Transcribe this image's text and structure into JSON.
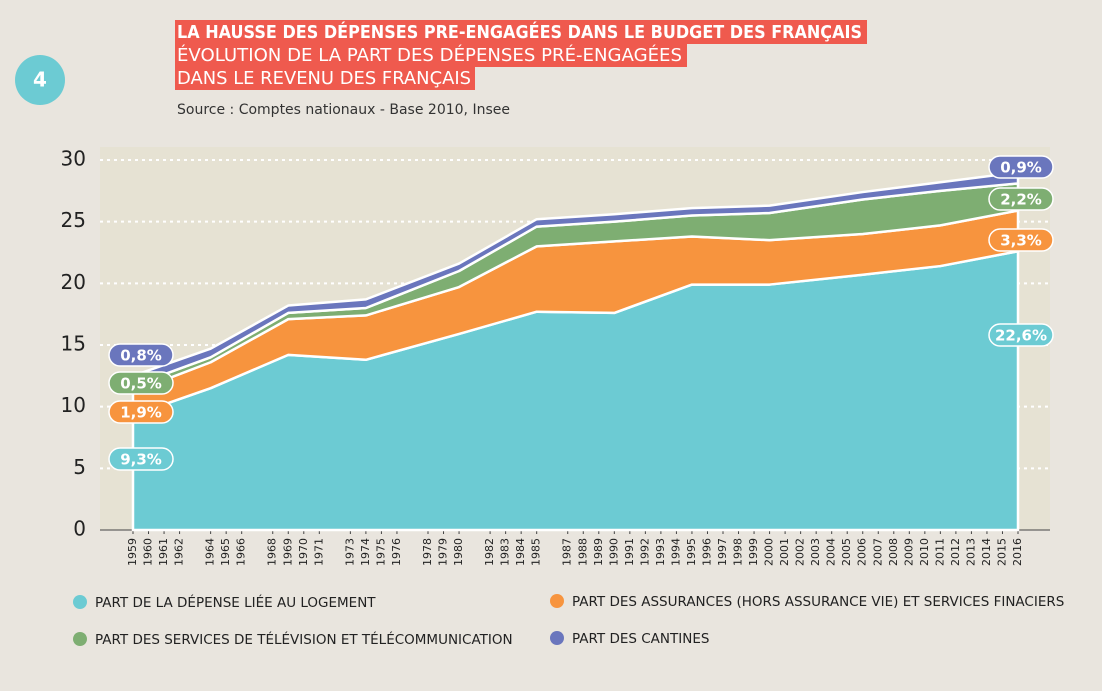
{
  "chart_data": {
    "type": "stacked_area",
    "badge": "4",
    "title": "LA HAUSSE DES DÉPENSES PRE-ENGAGÉES DANS LE BUDGET DES FRANÇAIS",
    "subtitle_lines": [
      "ÉVOLUTION DE LA PART DES DÉPENSES PRÉ-ENGAGÉES",
      "DANS LE REVENU DES FRANÇAIS"
    ],
    "source": "Source : Comptes nationaux - Base 2010, Insee",
    "x": [
      1959,
      1964,
      1969,
      1974,
      1980,
      1985,
      1990,
      1995,
      2000,
      2006,
      2011,
      2016
    ],
    "xlim": [
      1959,
      2016
    ],
    "xticks": [
      1959,
      1960,
      1961,
      1962,
      1964,
      1965,
      1966,
      1968,
      1969,
      1970,
      1971,
      1973,
      1974,
      1975,
      1976,
      1978,
      1979,
      1980,
      1982,
      1983,
      1984,
      1985,
      1987,
      1988,
      1989,
      1990,
      1991,
      1992,
      1993,
      1994,
      1995,
      1996,
      1997,
      1998,
      1999,
      2000,
      2001,
      2002,
      2003,
      2004,
      2005,
      2006,
      2007,
      2008,
      2009,
      2010,
      2011,
      2012,
      2013,
      2014,
      2015,
      2016
    ],
    "ylim": [
      0,
      30
    ],
    "yticks": [
      0,
      5,
      10,
      15,
      20,
      25,
      30
    ],
    "grid": true,
    "series": [
      {
        "name": "PART DE LA DÉPENSE LIÉE AU LOGEMENT",
        "color": "#6ccbd3",
        "values": [
          9.3,
          11.5,
          14.2,
          13.8,
          15.9,
          17.7,
          17.6,
          19.9,
          19.9,
          20.7,
          21.4,
          22.6
        ],
        "value_labels": [
          "9,3%",
          null,
          null,
          null,
          null,
          null,
          null,
          null,
          null,
          null,
          null,
          "22,6%"
        ]
      },
      {
        "name": "PART DES ASSURANCES (HORS ASSURANCE VIE) ET SERVICES FINACIERS",
        "color": "#f7943e",
        "values": [
          1.9,
          2.1,
          2.9,
          3.6,
          3.8,
          5.3,
          5.8,
          3.9,
          3.6,
          3.3,
          3.3,
          3.3
        ],
        "value_labels": [
          "1,9%",
          null,
          null,
          null,
          null,
          null,
          null,
          null,
          null,
          null,
          null,
          "3,3%"
        ]
      },
      {
        "name": "PART DES SERVICES DE TÉLÉVISION ET TÉLÉCOMMUNICATION",
        "color": "#7eae72",
        "values": [
          0.5,
          0.4,
          0.5,
          0.6,
          1.3,
          1.6,
          1.6,
          1.7,
          2.2,
          2.8,
          2.8,
          2.2
        ],
        "value_labels": [
          "0,5%",
          null,
          null,
          null,
          null,
          null,
          null,
          null,
          null,
          null,
          null,
          "2,2%"
        ]
      },
      {
        "name": "PART DES CANTINES",
        "color": "#6a76bd",
        "values": [
          0.8,
          0.7,
          0.6,
          0.7,
          0.6,
          0.6,
          0.6,
          0.6,
          0.6,
          0.6,
          0.7,
          0.9
        ],
        "value_labels": [
          "0,8%",
          null,
          null,
          null,
          null,
          null,
          null,
          null,
          null,
          null,
          null,
          "0,9%"
        ]
      }
    ]
  }
}
